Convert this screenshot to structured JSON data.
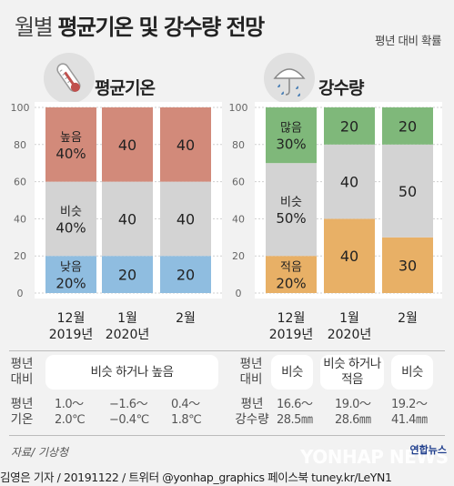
{
  "header": {
    "title_light": "월별",
    "title_bold": "평균기온 및 강수량 전망",
    "note": "평년 대비 확률"
  },
  "colors": {
    "high": "#d28a7a",
    "similar": "#d3d3d3",
    "low": "#8fbde0",
    "wet": "#7fb87a",
    "dry": "#e8b066"
  },
  "icons": {
    "temperature": "thermometer-icon",
    "precipitation": "umbrella-rain-icon"
  },
  "chart_data": [
    {
      "type": "bar",
      "stacked": true,
      "title": "평균기온",
      "categories": [
        "12월\n2019년",
        "1월\n2020년",
        "2월"
      ],
      "y_ticks": [
        "0",
        "20",
        "40",
        "60",
        "80",
        "100"
      ],
      "ylim": [
        0,
        100
      ],
      "series": [
        {
          "name": "낮음",
          "values": [
            20,
            20,
            20
          ]
        },
        {
          "name": "비슷",
          "values": [
            40,
            40,
            40
          ]
        },
        {
          "name": "높음",
          "values": [
            40,
            40,
            40
          ]
        }
      ]
    },
    {
      "type": "bar",
      "stacked": true,
      "title": "강수량",
      "categories": [
        "12월\n2019년",
        "1월\n2020년",
        "2월"
      ],
      "y_ticks": [
        "0",
        "20",
        "40",
        "60",
        "80",
        "100"
      ],
      "ylim": [
        0,
        100
      ],
      "series": [
        {
          "name": "적음",
          "values": [
            20,
            40,
            30
          ]
        },
        {
          "name": "비슷",
          "values": [
            50,
            40,
            50
          ]
        },
        {
          "name": "많음",
          "values": [
            30,
            20,
            20
          ]
        }
      ]
    }
  ],
  "table": {
    "row1_label": "평년\n대비",
    "row2_label_temp": "평년\n기온",
    "row2_label_precip": "평년\n강수량",
    "temp_outlook": "비슷 하거나 높음",
    "precip_outlook": [
      "비슷",
      "비슷 하거나\n적음",
      "비슷"
    ],
    "temp_normals": [
      "1.0〜\n2.0℃",
      "−1.6〜\n−0.4℃",
      "0.4〜\n1.8℃"
    ],
    "precip_normals": [
      "16.6〜\n28.5㎜",
      "19.0〜\n28.6㎜",
      "19.2〜\n41.4㎜"
    ]
  },
  "footer": {
    "source": "자료/ 기상청",
    "credit": "김영은 기자 / 20191122 / 트위터 @yonhap_graphics  페이스북 tuney.kr/LeYN1",
    "logo": "연합뉴스",
    "watermark": "YONHAP NEWS"
  }
}
